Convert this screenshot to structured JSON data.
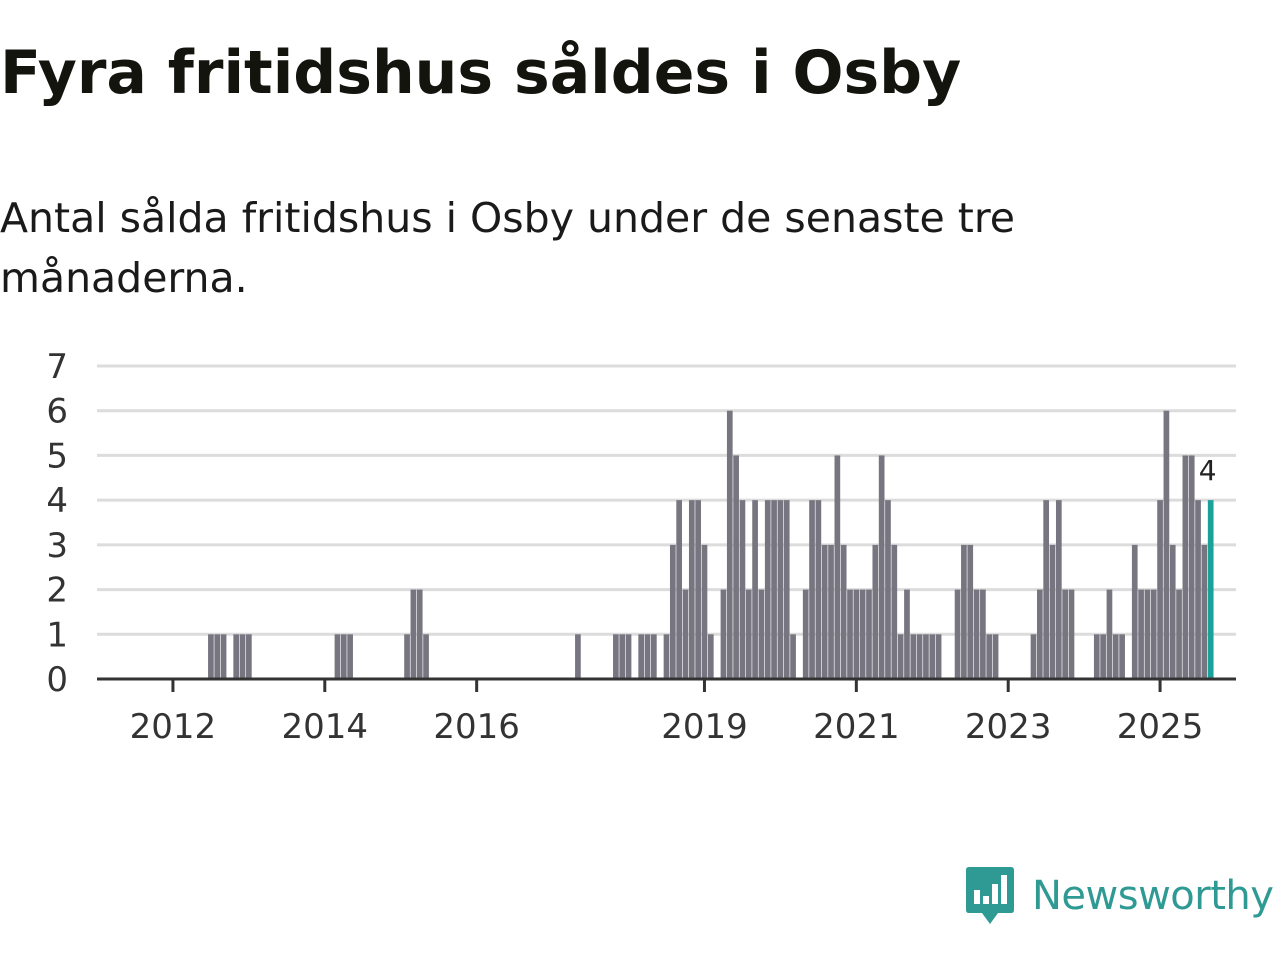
{
  "header": {
    "title": "Fyra fritidshus såldes i Osby",
    "subtitle": "Antal sålda fritidshus i Osby under de senaste tre månaderna."
  },
  "colors": {
    "bar": "#777680",
    "highlight": "#19a29a",
    "grid": "#dcdcdc",
    "axis": "#333333",
    "brand": "#2f9a94"
  },
  "brand": {
    "name": "Newsworthy"
  },
  "chart_data": {
    "type": "bar",
    "title": "Fyra fritidshus såldes i Osby",
    "subtitle": "Antal sålda fritidshus i Osby under de senaste tre månaderna.",
    "xlabel": "",
    "ylabel": "",
    "ylim": [
      0,
      7
    ],
    "yticks": [
      0,
      1,
      2,
      3,
      4,
      5,
      6,
      7
    ],
    "grid": true,
    "x_start": "2011-01",
    "x_end": "2026-01",
    "xticks": [
      {
        "label": "2012",
        "t": "2012-01"
      },
      {
        "label": "2014",
        "t": "2014-01"
      },
      {
        "label": "2016",
        "t": "2016-01"
      },
      {
        "label": "2019",
        "t": "2019-01"
      },
      {
        "label": "2021",
        "t": "2021-01"
      },
      {
        "label": "2023",
        "t": "2023-01"
      },
      {
        "label": "2025",
        "t": "2025-01"
      }
    ],
    "bar_width_months": 0.9,
    "series": [
      {
        "name": "Antal sålda fritidshus",
        "bars": [
          [
            "2012-07",
            1
          ],
          [
            "2012-08",
            1
          ],
          [
            "2012-09",
            1
          ],
          [
            "2012-11",
            1
          ],
          [
            "2012-12",
            1
          ],
          [
            "2013-01",
            1
          ],
          [
            "2014-03",
            1
          ],
          [
            "2014-04",
            1
          ],
          [
            "2014-05",
            1
          ],
          [
            "2015-02",
            1
          ],
          [
            "2015-03",
            2
          ],
          [
            "2015-04",
            2
          ],
          [
            "2015-05",
            1
          ],
          [
            "2017-05",
            1
          ],
          [
            "2017-11",
            1
          ],
          [
            "2017-12",
            1
          ],
          [
            "2018-01",
            1
          ],
          [
            "2018-03",
            1
          ],
          [
            "2018-04",
            1
          ],
          [
            "2018-05",
            1
          ],
          [
            "2018-07",
            1
          ],
          [
            "2018-08",
            3
          ],
          [
            "2018-09",
            4
          ],
          [
            "2018-10",
            2
          ],
          [
            "2018-11",
            4
          ],
          [
            "2018-12",
            4
          ],
          [
            "2019-01",
            3
          ],
          [
            "2019-02",
            1
          ],
          [
            "2019-04",
            2
          ],
          [
            "2019-05",
            6
          ],
          [
            "2019-06",
            5
          ],
          [
            "2019-07",
            4
          ],
          [
            "2019-08",
            2
          ],
          [
            "2019-09",
            4
          ],
          [
            "2019-10",
            2
          ],
          [
            "2019-11",
            4
          ],
          [
            "2019-12",
            4
          ],
          [
            "2020-01",
            4
          ],
          [
            "2020-02",
            4
          ],
          [
            "2020-03",
            1
          ],
          [
            "2020-05",
            2
          ],
          [
            "2020-06",
            4
          ],
          [
            "2020-07",
            4
          ],
          [
            "2020-08",
            3
          ],
          [
            "2020-09",
            3
          ],
          [
            "2020-10",
            5
          ],
          [
            "2020-11",
            3
          ],
          [
            "2020-12",
            2
          ],
          [
            "2021-01",
            2
          ],
          [
            "2021-02",
            2
          ],
          [
            "2021-03",
            2
          ],
          [
            "2021-04",
            3
          ],
          [
            "2021-05",
            5
          ],
          [
            "2021-06",
            4
          ],
          [
            "2021-07",
            3
          ],
          [
            "2021-08",
            1
          ],
          [
            "2021-09",
            2
          ],
          [
            "2021-10",
            1
          ],
          [
            "2021-11",
            1
          ],
          [
            "2021-12",
            1
          ],
          [
            "2022-01",
            1
          ],
          [
            "2022-02",
            1
          ],
          [
            "2022-05",
            2
          ],
          [
            "2022-06",
            3
          ],
          [
            "2022-07",
            3
          ],
          [
            "2022-08",
            2
          ],
          [
            "2022-09",
            2
          ],
          [
            "2022-10",
            1
          ],
          [
            "2022-11",
            1
          ],
          [
            "2023-05",
            1
          ],
          [
            "2023-06",
            2
          ],
          [
            "2023-07",
            4
          ],
          [
            "2023-08",
            3
          ],
          [
            "2023-09",
            4
          ],
          [
            "2023-10",
            2
          ],
          [
            "2023-11",
            2
          ],
          [
            "2024-03",
            1
          ],
          [
            "2024-04",
            1
          ],
          [
            "2024-05",
            2
          ],
          [
            "2024-06",
            1
          ],
          [
            "2024-07",
            1
          ],
          [
            "2024-09",
            3
          ],
          [
            "2024-10",
            2
          ],
          [
            "2024-11",
            2
          ],
          [
            "2024-12",
            2
          ],
          [
            "2025-01",
            4
          ],
          [
            "2025-02",
            6
          ],
          [
            "2025-03",
            3
          ],
          [
            "2025-04",
            2
          ],
          [
            "2025-05",
            5
          ],
          [
            "2025-06",
            5
          ],
          [
            "2025-07",
            4
          ],
          [
            "2025-08",
            3
          ],
          [
            "2025-09",
            4
          ]
        ]
      }
    ],
    "highlight": {
      "t": "2025-09",
      "value": 4,
      "label": "4"
    }
  }
}
